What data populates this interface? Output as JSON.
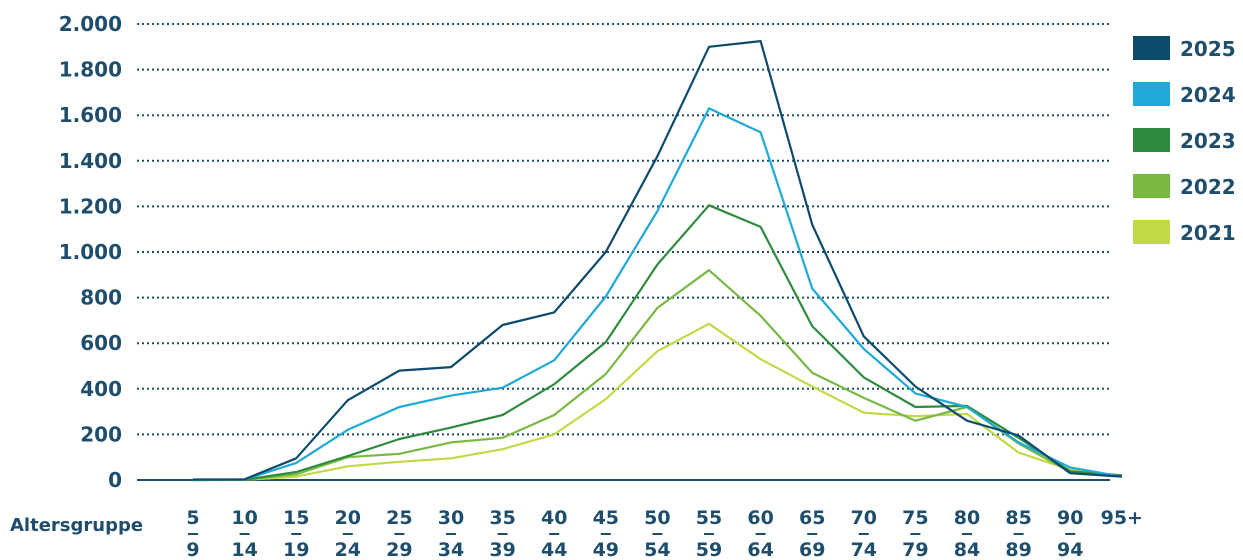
{
  "chart_data": {
    "type": "line",
    "xlabel": "Altersgruppe",
    "categories": [
      {
        "top": "5",
        "bottom": "9"
      },
      {
        "top": "10",
        "bottom": "14"
      },
      {
        "top": "15",
        "bottom": "19"
      },
      {
        "top": "20",
        "bottom": "24"
      },
      {
        "top": "25",
        "bottom": "29"
      },
      {
        "top": "30",
        "bottom": "34"
      },
      {
        "top": "35",
        "bottom": "39"
      },
      {
        "top": "40",
        "bottom": "44"
      },
      {
        "top": "45",
        "bottom": "49"
      },
      {
        "top": "50",
        "bottom": "54"
      },
      {
        "top": "55",
        "bottom": "59"
      },
      {
        "top": "60",
        "bottom": "64"
      },
      {
        "top": "65",
        "bottom": "69"
      },
      {
        "top": "70",
        "bottom": "74"
      },
      {
        "top": "75",
        "bottom": "79"
      },
      {
        "top": "80",
        "bottom": "84"
      },
      {
        "top": "85",
        "bottom": "89"
      },
      {
        "top": "90",
        "bottom": "94"
      },
      {
        "top": "95+",
        "bottom": ""
      }
    ],
    "ylim": [
      0,
      2000
    ],
    "yticks": [
      {
        "value": 0,
        "label": "0"
      },
      {
        "value": 200,
        "label": "200"
      },
      {
        "value": 400,
        "label": "400"
      },
      {
        "value": 600,
        "label": "600"
      },
      {
        "value": 800,
        "label": "800"
      },
      {
        "value": 1000,
        "label": "1.000"
      },
      {
        "value": 1200,
        "label": "1.200"
      },
      {
        "value": 1400,
        "label": "1.400"
      },
      {
        "value": 1600,
        "label": "1.600"
      },
      {
        "value": 1800,
        "label": "1.800"
      },
      {
        "value": 2000,
        "label": "2.000"
      }
    ],
    "grid": true,
    "legend_position": "top-right",
    "series": [
      {
        "name": "2025",
        "color": "#0d4a6b",
        "values": [
          2,
          3,
          95,
          350,
          480,
          495,
          680,
          735,
          1000,
          1420,
          1900,
          1925,
          1120,
          630,
          410,
          260,
          195,
          30,
          15
        ]
      },
      {
        "name": "2024",
        "color": "#1fa9d6",
        "values": [
          1,
          2,
          75,
          220,
          320,
          370,
          405,
          525,
          805,
          1180,
          1630,
          1525,
          840,
          575,
          380,
          320,
          165,
          55,
          15
        ]
      },
      {
        "name": "2023",
        "color": "#2e8b3e",
        "values": [
          0,
          1,
          35,
          105,
          180,
          230,
          285,
          420,
          605,
          945,
          1205,
          1110,
          675,
          450,
          320,
          325,
          185,
          38,
          20
        ]
      },
      {
        "name": "2022",
        "color": "#79b843",
        "values": [
          0,
          1,
          25,
          100,
          115,
          165,
          185,
          285,
          465,
          755,
          920,
          720,
          470,
          360,
          260,
          320,
          160,
          35,
          20
        ]
      },
      {
        "name": "2021",
        "color": "#c2d946",
        "values": [
          0,
          1,
          15,
          60,
          80,
          95,
          135,
          200,
          355,
          565,
          685,
          530,
          410,
          295,
          280,
          290,
          120,
          45,
          15
        ]
      }
    ]
  }
}
